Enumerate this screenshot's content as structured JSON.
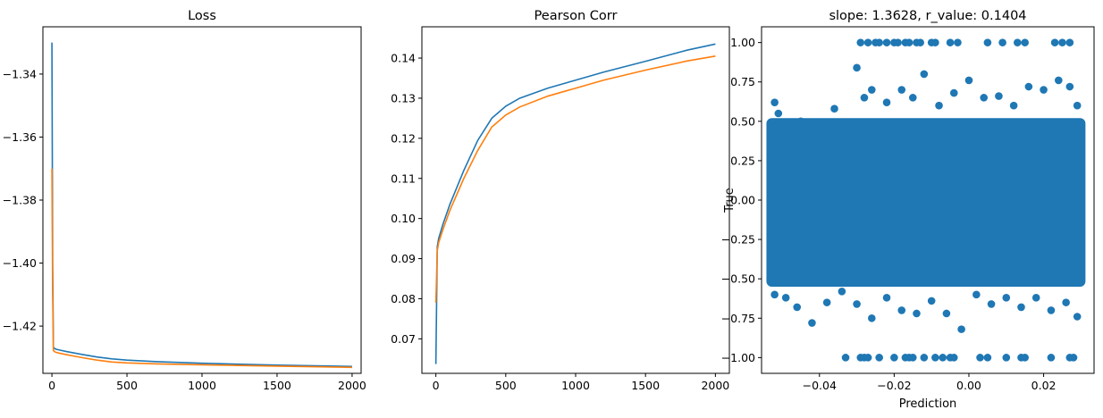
{
  "chart_data": [
    {
      "type": "line",
      "title": "Loss",
      "xlabel": "",
      "ylabel": "",
      "xlim": [
        -60,
        2060
      ],
      "ylim": [
        -1.435,
        -1.325
      ],
      "xticks": [
        0,
        500,
        1000,
        1500,
        2000
      ],
      "xtick_labels": [
        "0",
        "500",
        "1000",
        "1500",
        "2000"
      ],
      "yticks": [
        -1.34,
        -1.36,
        -1.38,
        -1.4,
        -1.42
      ],
      "ytick_labels": [
        "−1.34",
        "−1.36",
        "−1.38",
        "−1.40",
        "−1.42"
      ],
      "series": [
        {
          "color": "#1f77b4",
          "x": [
            0,
            5,
            10,
            25,
            50,
            100,
            200,
            300,
            400,
            500,
            700,
            1000,
            1500,
            2000
          ],
          "y": [
            -1.33,
            -1.4,
            -1.4268,
            -1.4273,
            -1.4276,
            -1.4281,
            -1.429,
            -1.4298,
            -1.4304,
            -1.4308,
            -1.4313,
            -1.4318,
            -1.4324,
            -1.4328
          ]
        },
        {
          "color": "#ff7f0e",
          "x": [
            0,
            5,
            10,
            25,
            50,
            100,
            200,
            300,
            400,
            500,
            700,
            1000,
            1500,
            2000
          ],
          "y": [
            -1.37,
            -1.41,
            -1.4278,
            -1.4283,
            -1.4286,
            -1.4291,
            -1.43,
            -1.4308,
            -1.4314,
            -1.4317,
            -1.432,
            -1.4323,
            -1.4327,
            -1.4331
          ]
        }
      ]
    },
    {
      "type": "line",
      "title": "Pearson Corr",
      "xlabel": "",
      "ylabel": "",
      "xlim": [
        -100,
        2100
      ],
      "ylim": [
        0.0614,
        0.1478
      ],
      "xticks": [
        0,
        500,
        1000,
        1500,
        2000
      ],
      "xtick_labels": [
        "0",
        "500",
        "1000",
        "1500",
        "2000"
      ],
      "yticks": [
        0.07,
        0.08,
        0.09,
        0.1,
        0.11,
        0.12,
        0.13,
        0.14
      ],
      "ytick_labels": [
        "0.07",
        "0.08",
        "0.09",
        "0.10",
        "0.11",
        "0.12",
        "0.13",
        "0.14"
      ],
      "series": [
        {
          "color": "#1f77b4",
          "x": [
            0,
            10,
            20,
            50,
            100,
            200,
            300,
            400,
            500,
            600,
            800,
            1000,
            1200,
            1500,
            1800,
            2000
          ],
          "y": [
            0.0637,
            0.093,
            0.095,
            0.0985,
            0.1035,
            0.112,
            0.1195,
            0.125,
            0.128,
            0.13,
            0.1325,
            0.1345,
            0.1365,
            0.1392,
            0.142,
            0.1435
          ]
        },
        {
          "color": "#ff7f0e",
          "x": [
            0,
            10,
            20,
            50,
            100,
            200,
            300,
            400,
            500,
            600,
            800,
            1000,
            1200,
            1500,
            1800,
            2000
          ],
          "y": [
            0.079,
            0.092,
            0.094,
            0.0972,
            0.102,
            0.11,
            0.117,
            0.1228,
            0.1258,
            0.1278,
            0.1305,
            0.1325,
            0.1345,
            0.137,
            0.1393,
            0.1405
          ]
        }
      ]
    },
    {
      "type": "scatter",
      "title": "slope: 1.3628, r_value: 0.1404",
      "xlabel": "Prediction",
      "ylabel": "True",
      "xlim": [
        -0.0555,
        0.0335
      ],
      "ylim": [
        -1.1,
        1.1
      ],
      "xticks": [
        -0.04,
        -0.02,
        0.0,
        0.02
      ],
      "xtick_labels": [
        "−0.04",
        "−0.02",
        "0.00",
        "0.02"
      ],
      "yticks": [
        1.0,
        0.75,
        0.5,
        0.25,
        0.0,
        -0.25,
        -0.5,
        -0.75,
        -1.0
      ],
      "ytick_labels": [
        "1.00",
        "0.75",
        "0.50",
        "0.25",
        "0.00",
        "−0.25",
        "−0.50",
        "−0.75",
        "−1.00"
      ],
      "marker_color": "#1f77b4",
      "dense_region": {
        "x": [
          -0.053,
          0.03
        ],
        "y": [
          -0.55,
          0.52
        ]
      },
      "points": [
        [
          -0.052,
          0.62
        ],
        [
          -0.051,
          0.55
        ],
        [
          -0.048,
          0.45
        ],
        [
          -0.045,
          0.5
        ],
        [
          -0.04,
          0.48
        ],
        [
          -0.036,
          0.58
        ],
        [
          -0.032,
          0.48
        ],
        [
          -0.03,
          0.84
        ],
        [
          -0.028,
          0.65
        ],
        [
          -0.026,
          0.7
        ],
        [
          -0.022,
          0.62
        ],
        [
          -0.018,
          0.7
        ],
        [
          -0.015,
          0.65
        ],
        [
          -0.012,
          0.8
        ],
        [
          -0.008,
          0.6
        ],
        [
          -0.004,
          0.68
        ],
        [
          0.0,
          0.76
        ],
        [
          0.004,
          0.65
        ],
        [
          0.008,
          0.66
        ],
        [
          0.012,
          0.6
        ],
        [
          0.016,
          0.72
        ],
        [
          0.02,
          0.7
        ],
        [
          0.024,
          0.76
        ],
        [
          0.027,
          0.72
        ],
        [
          0.029,
          0.6
        ],
        [
          -0.052,
          -0.6
        ],
        [
          -0.049,
          -0.62
        ],
        [
          -0.046,
          -0.68
        ],
        [
          -0.042,
          -0.78
        ],
        [
          -0.038,
          -0.65
        ],
        [
          -0.034,
          -0.58
        ],
        [
          -0.03,
          -0.66
        ],
        [
          -0.026,
          -0.75
        ],
        [
          -0.022,
          -0.62
        ],
        [
          -0.018,
          -0.7
        ],
        [
          -0.014,
          -0.72
        ],
        [
          -0.01,
          -0.64
        ],
        [
          -0.006,
          -0.72
        ],
        [
          -0.002,
          -0.82
        ],
        [
          0.002,
          -0.6
        ],
        [
          0.006,
          -0.66
        ],
        [
          0.01,
          -0.62
        ],
        [
          0.014,
          -0.68
        ],
        [
          0.018,
          -0.62
        ],
        [
          0.022,
          -0.7
        ],
        [
          0.026,
          -0.65
        ],
        [
          0.029,
          -0.74
        ],
        [
          -0.029,
          1.0
        ],
        [
          -0.027,
          1.0
        ],
        [
          -0.025,
          1.0
        ],
        [
          -0.024,
          1.0
        ],
        [
          -0.022,
          1.0
        ],
        [
          -0.02,
          1.0
        ],
        [
          -0.019,
          1.0
        ],
        [
          -0.017,
          1.0
        ],
        [
          -0.016,
          1.0
        ],
        [
          -0.014,
          1.0
        ],
        [
          -0.013,
          1.0
        ],
        [
          -0.01,
          1.0
        ],
        [
          -0.009,
          1.0
        ],
        [
          -0.005,
          1.0
        ],
        [
          -0.003,
          1.0
        ],
        [
          0.005,
          1.0
        ],
        [
          0.009,
          1.0
        ],
        [
          0.013,
          1.0
        ],
        [
          0.015,
          1.0
        ],
        [
          0.023,
          1.0
        ],
        [
          0.025,
          1.0
        ],
        [
          0.027,
          1.0
        ],
        [
          -0.033,
          -1.0
        ],
        [
          -0.029,
          -1.0
        ],
        [
          -0.028,
          -1.0
        ],
        [
          -0.027,
          -1.0
        ],
        [
          -0.024,
          -1.0
        ],
        [
          -0.02,
          -1.0
        ],
        [
          -0.017,
          -1.0
        ],
        [
          -0.016,
          -1.0
        ],
        [
          -0.015,
          -1.0
        ],
        [
          -0.012,
          -1.0
        ],
        [
          -0.009,
          -1.0
        ],
        [
          -0.007,
          -1.0
        ],
        [
          -0.005,
          -1.0
        ],
        [
          -0.004,
          -1.0
        ],
        [
          0.003,
          -1.0
        ],
        [
          0.005,
          -1.0
        ],
        [
          0.01,
          -1.0
        ],
        [
          0.014,
          -1.0
        ],
        [
          0.015,
          -1.0
        ],
        [
          0.022,
          -1.0
        ],
        [
          0.027,
          -1.0
        ],
        [
          0.028,
          -1.0
        ]
      ]
    }
  ]
}
